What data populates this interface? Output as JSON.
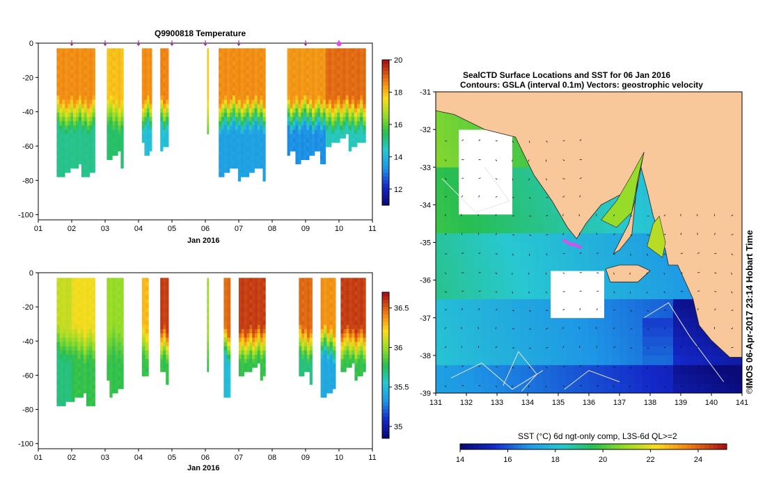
{
  "chart_data": [
    {
      "type": "heatmap",
      "title": "Q9900818  Temperature",
      "xlabel": "Jan 2016",
      "x_tick_labels": [
        "01",
        "02",
        "03",
        "04",
        "05",
        "06",
        "07",
        "08",
        "09",
        "10",
        "11"
      ],
      "y_tick_labels": [
        "0",
        "-20",
        "-40",
        "-60",
        "-80",
        "-100"
      ],
      "ylim": [
        -103,
        0
      ],
      "xlim": [
        1,
        11
      ],
      "colorbar": {
        "ticks": [
          "12",
          "14",
          "16",
          "18",
          "20"
        ],
        "range": [
          11,
          20
        ]
      },
      "profile_marker_days": [
        2.0,
        3.0,
        4.0,
        5.0,
        6.0,
        7.0,
        9.0,
        10.0
      ],
      "highlight_marker_day": 10.0,
      "profiles": [
        {
          "start": 1.55,
          "end": 2.7,
          "surface": 18.6,
          "bottom": 15.0,
          "max_depth": 78
        },
        {
          "start": 3.05,
          "end": 3.55,
          "surface": 18.0,
          "bottom": 15.3,
          "max_depth": 71
        },
        {
          "start": 4.1,
          "end": 4.4,
          "surface": 18.6,
          "bottom": 14.2,
          "max_depth": 65
        },
        {
          "start": 4.65,
          "end": 4.9,
          "surface": 18.7,
          "bottom": 14.2,
          "max_depth": 64
        },
        {
          "start": 6.05,
          "end": 6.1,
          "surface": 17.8,
          "bottom": 16.0,
          "max_depth": 59
        },
        {
          "start": 6.4,
          "end": 7.8,
          "surface": 18.6,
          "bottom": 13.5,
          "max_depth": 79
        },
        {
          "start": 8.45,
          "end": 9.6,
          "surface": 18.5,
          "bottom": 13.2,
          "max_depth": 70
        },
        {
          "start": 9.6,
          "end": 10.8,
          "surface": 19.0,
          "bottom": 14.6,
          "max_depth": 61
        }
      ]
    },
    {
      "type": "heatmap",
      "title": "",
      "xlabel": "Jan 2016",
      "x_tick_labels": [
        "01",
        "02",
        "03",
        "04",
        "05",
        "06",
        "07",
        "08",
        "09",
        "10",
        "11"
      ],
      "y_tick_labels": [
        "0",
        "-20",
        "-40",
        "-60",
        "-80",
        "-100"
      ],
      "ylim": [
        -103,
        0
      ],
      "xlim": [
        1,
        11
      ],
      "colorbar": {
        "ticks": [
          "35",
          "35.5",
          "36",
          "36.5"
        ],
        "range": [
          34.85,
          36.7
        ]
      },
      "profiles": [
        {
          "start": 1.55,
          "end": 2.0,
          "surface": 36.1,
          "bottom": 35.7,
          "max_depth": 78
        },
        {
          "start": 2.0,
          "end": 2.7,
          "surface": 36.2,
          "bottom": 35.8,
          "max_depth": 78
        },
        {
          "start": 3.05,
          "end": 3.55,
          "surface": 36.0,
          "bottom": 35.8,
          "max_depth": 71
        },
        {
          "start": 4.1,
          "end": 4.3,
          "surface": 36.3,
          "bottom": 35.8,
          "max_depth": 63
        },
        {
          "start": 4.65,
          "end": 4.9,
          "surface": 36.6,
          "bottom": 35.8,
          "max_depth": 64
        },
        {
          "start": 6.05,
          "end": 6.1,
          "surface": 36.0,
          "bottom": 35.8,
          "max_depth": 59
        },
        {
          "start": 6.55,
          "end": 6.75,
          "surface": 36.5,
          "bottom": 35.5,
          "max_depth": 79
        },
        {
          "start": 7.0,
          "end": 7.8,
          "surface": 36.6,
          "bottom": 35.8,
          "max_depth": 61
        },
        {
          "start": 8.8,
          "end": 9.2,
          "surface": 36.5,
          "bottom": 35.7,
          "max_depth": 65
        },
        {
          "start": 9.45,
          "end": 9.9,
          "surface": 36.4,
          "bottom": 35.4,
          "max_depth": 72
        },
        {
          "start": 10.05,
          "end": 10.8,
          "surface": 36.6,
          "bottom": 35.8,
          "max_depth": 61
        }
      ]
    },
    {
      "type": "heatmap",
      "title_line1": "SealCTD Surface Locations and SST for 06 Jan 2016",
      "title_line2": "Contours: GSLA (interval 0.1m) Vectors: geostrophic velocity",
      "x_tick_labels": [
        "131",
        "132",
        "133",
        "134",
        "135",
        "136",
        "137",
        "138",
        "139",
        "140",
        "141"
      ],
      "y_tick_labels": [
        "-31",
        "-32",
        "-33",
        "-34",
        "-35",
        "-36",
        "-37",
        "-38",
        "-39"
      ],
      "xlim": [
        131,
        141
      ],
      "ylim": [
        -39,
        -31
      ],
      "colorbar": {
        "label": "SST (°C) 6d ngt-only comp, L3S-6d QL>=2",
        "ticks": [
          "14",
          "16",
          "18",
          "20",
          "22",
          "24"
        ],
        "range": [
          14,
          25.2
        ]
      },
      "seal_locations": [
        [
          135.2,
          -34.95
        ],
        [
          135.3,
          -35.0
        ],
        [
          135.4,
          -35.05
        ],
        [
          135.5,
          -35.05
        ],
        [
          135.6,
          -35.08
        ],
        [
          135.7,
          -35.12
        ]
      ],
      "side_label": "IMOS 06-Apr-2017 23:14 Hobart Time",
      "copyright": "©"
    }
  ],
  "colors": {
    "land": "#f9c89a",
    "seal_marker": "#e24be8",
    "profile_marker": "#9b2ea0",
    "contour": "#e6e6e6"
  }
}
